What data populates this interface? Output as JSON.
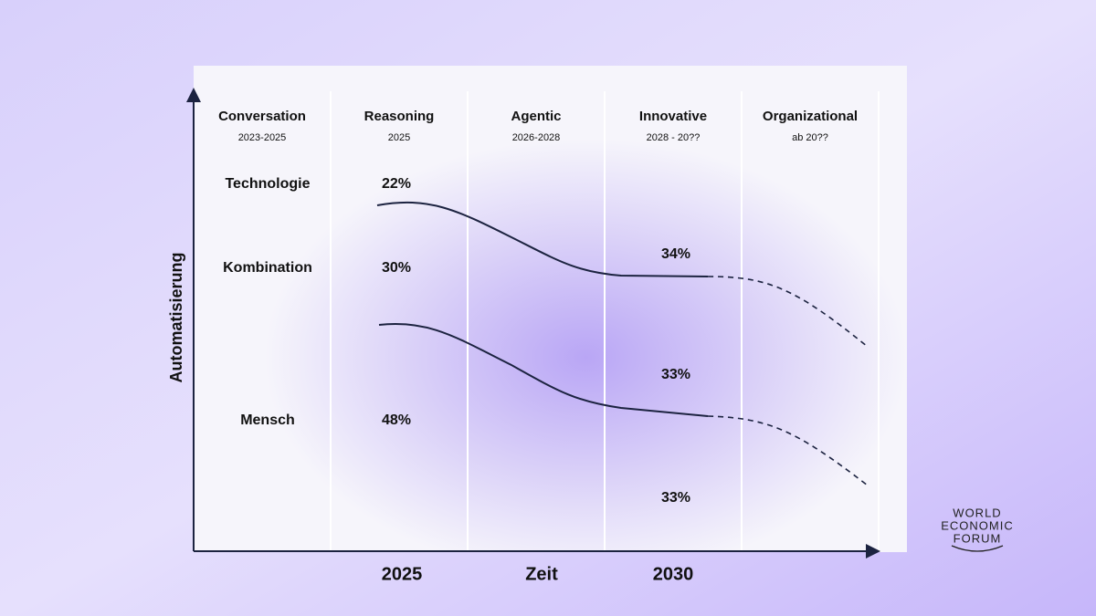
{
  "diagram": {
    "y_axis_label": "Automatisierung",
    "columns": [
      {
        "title": "Conversation",
        "period": "2023-2025"
      },
      {
        "title": "Reasoning",
        "period": "2025"
      },
      {
        "title": "Agentic",
        "period": "2026-2028"
      },
      {
        "title": "Innovative",
        "period": "2028 - 20??"
      },
      {
        "title": "Organizational",
        "period": "ab 20??"
      }
    ],
    "rows": [
      "Technologie",
      "Kombination",
      "Mensch"
    ],
    "shares_2025": [
      "22%",
      "30%",
      "48%"
    ],
    "shares_2030": [
      "34%",
      "33%",
      "33%"
    ],
    "x_labels": [
      "2025",
      "Zeit",
      "2030"
    ],
    "logo": [
      "WORLD",
      "ECONOMIC",
      "FORUM"
    ]
  }
}
